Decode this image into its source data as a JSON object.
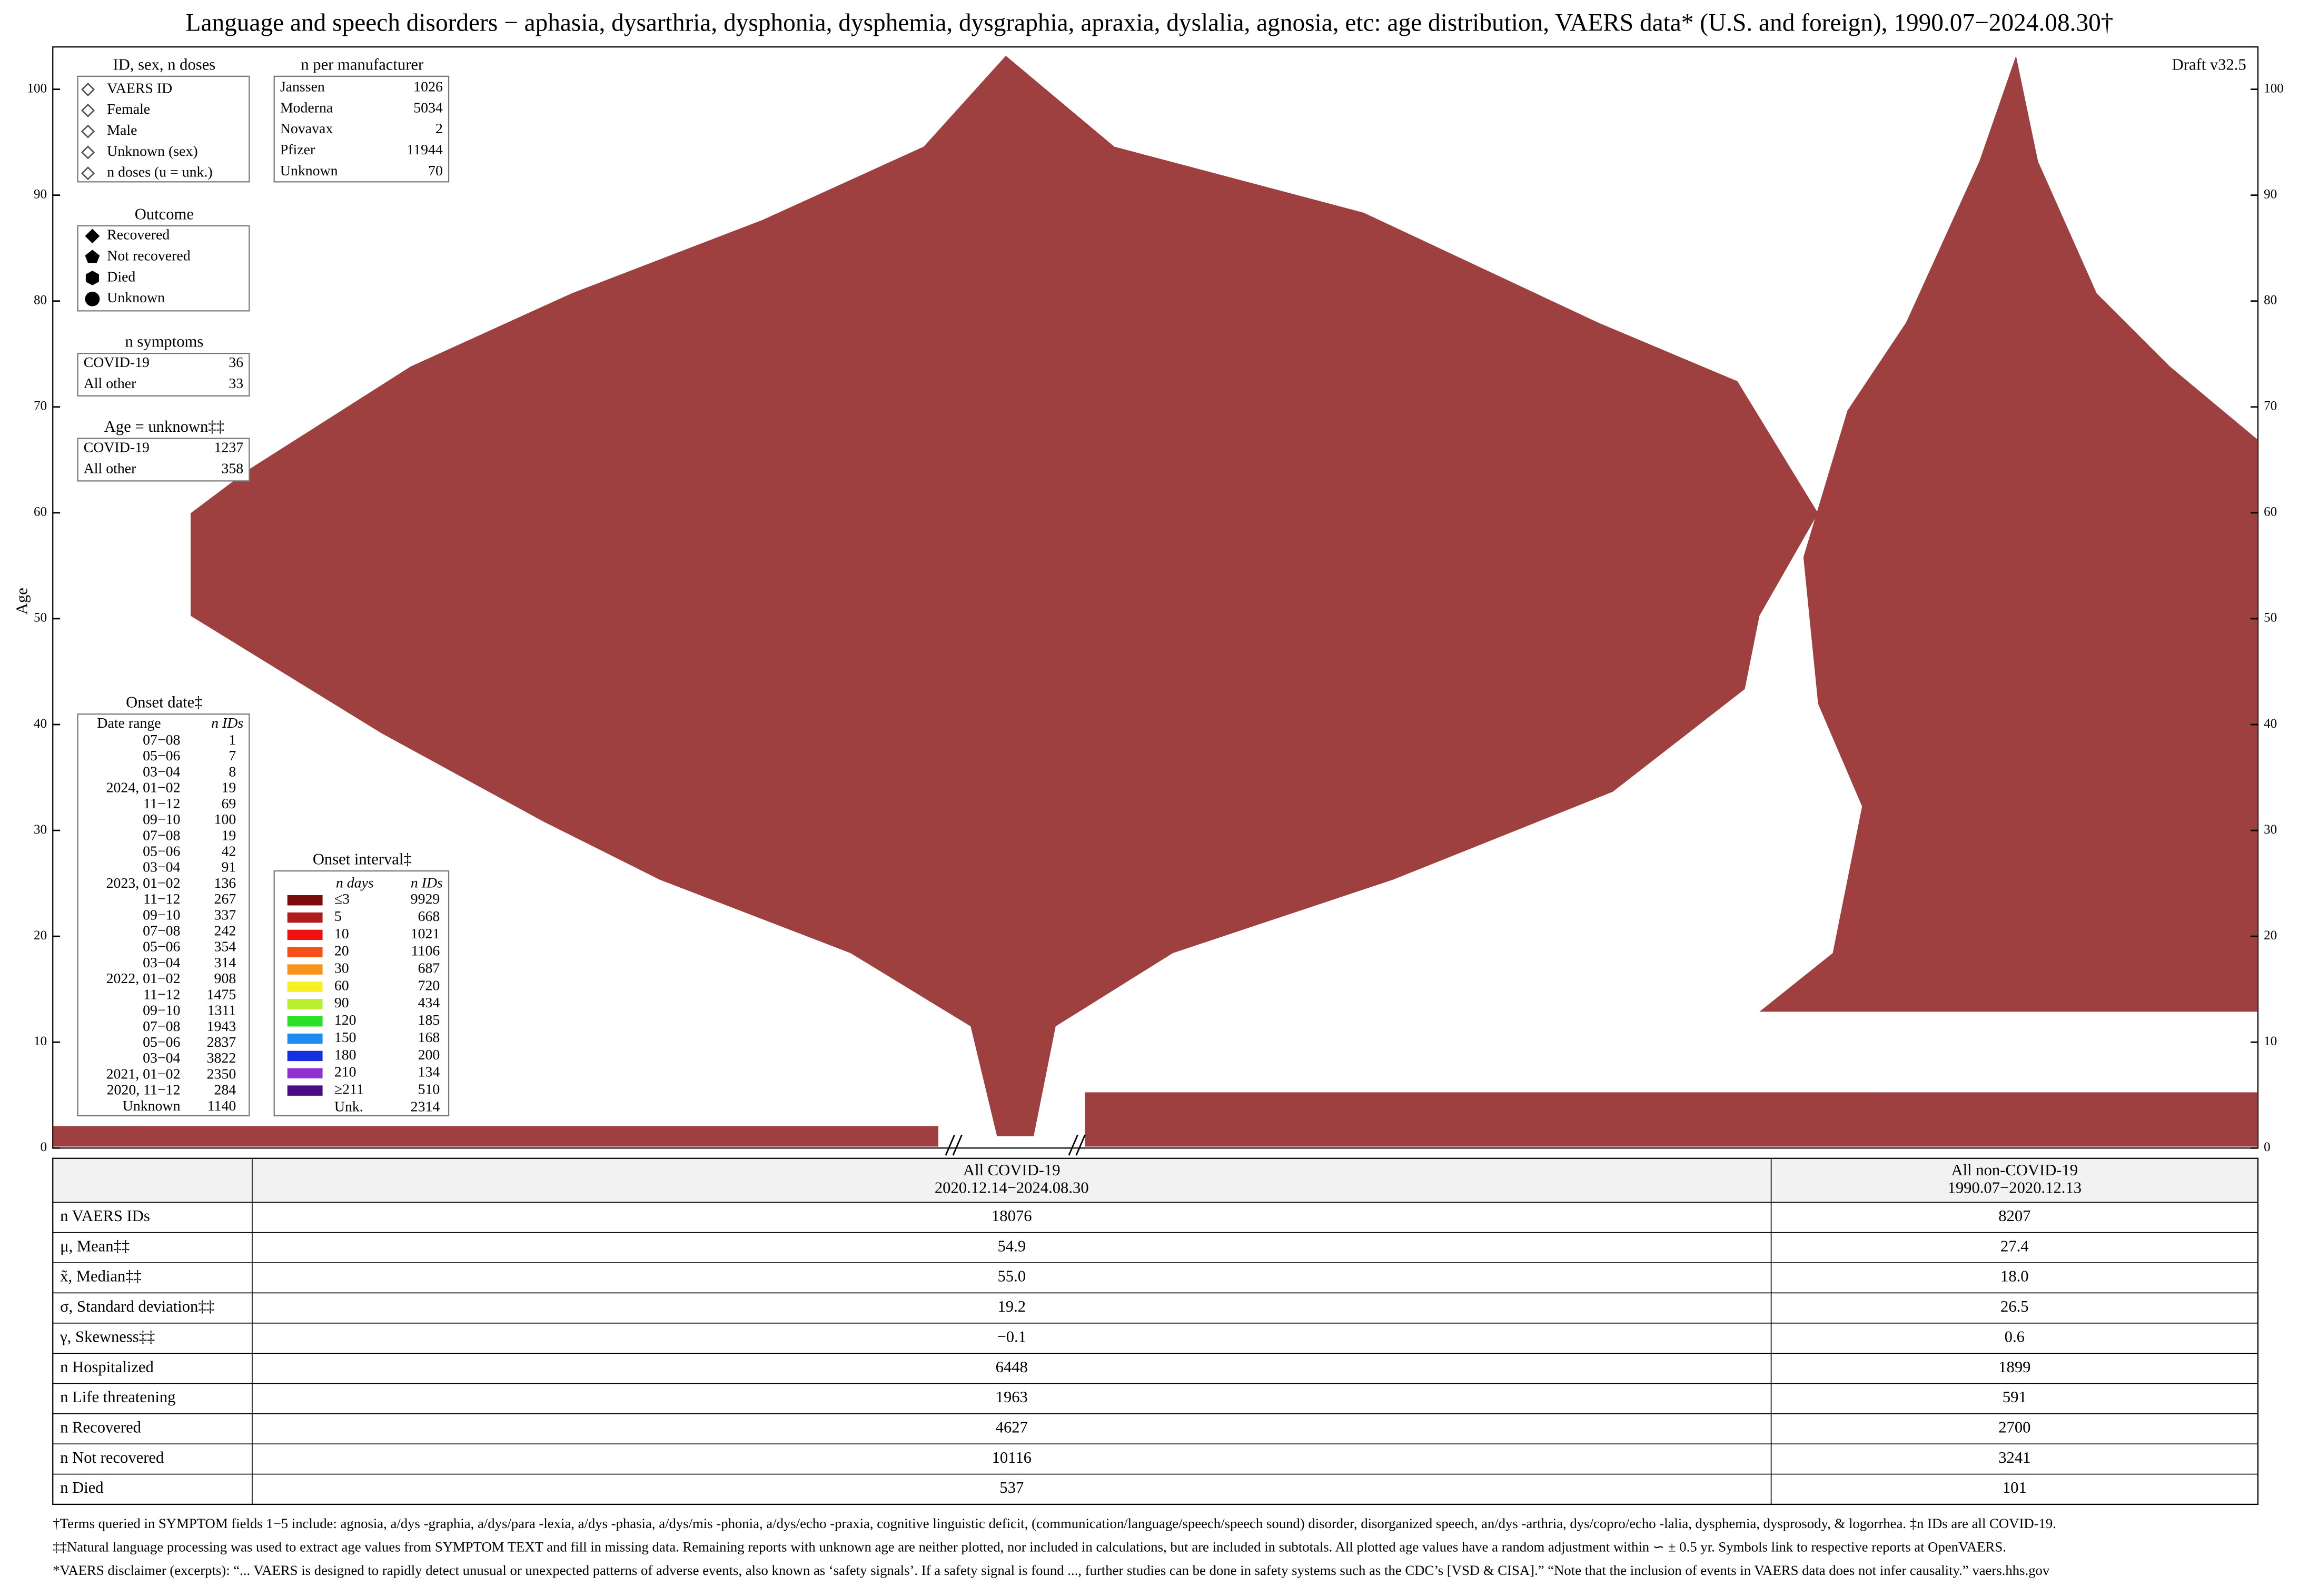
{
  "chart_data": {
    "type": "swarm",
    "title": "Language and speech disorders − aphasia, dysarthria, dysphonia, dysphemia, dysgraphia, apraxia, dyslalia, agnosia, etc: age distribution, VAERS data* (U.S. and foreign), 1990.07−2024.08.30†",
    "draft": "Draft v32.5",
    "ylabel": "Age",
    "ylim": [
      0,
      104
    ],
    "yticks": [
      0,
      10,
      20,
      30,
      40,
      50,
      60,
      70,
      80,
      90,
      100
    ],
    "legend_id": {
      "title": "ID, sex, n doses",
      "items": [
        "VAERS ID",
        "Female",
        "Male",
        "Unknown (sex)",
        "n doses (u = unk.)"
      ]
    },
    "legend_manufacturer": {
      "title": "n per manufacturer",
      "rows": [
        [
          "Janssen",
          1026
        ],
        [
          "Moderna",
          5034
        ],
        [
          "Novavax",
          2
        ],
        [
          "Pfizer",
          11944
        ],
        [
          "Unknown",
          70
        ]
      ]
    },
    "legend_outcome": {
      "title": "Outcome",
      "items": [
        "Recovered",
        "Not recovered",
        "Died",
        "Unknown"
      ]
    },
    "legend_symptoms": {
      "title": "n symptoms",
      "rows": [
        [
          "COVID-19",
          36
        ],
        [
          "All other",
          33
        ]
      ]
    },
    "legend_age_unknown": {
      "title": "Age = unknown‡‡",
      "rows": [
        [
          "COVID-19",
          1237
        ],
        [
          "All other",
          358
        ]
      ]
    },
    "legend_onset_date": {
      "title": "Onset date‡",
      "header": [
        "Date range",
        "n IDs"
      ],
      "rows": [
        [
          "07−08",
          1
        ],
        [
          "05−06",
          7
        ],
        [
          "03−04",
          8
        ],
        [
          "2024, 01−02",
          19
        ],
        [
          "11−12",
          69
        ],
        [
          "09−10",
          100
        ],
        [
          "07−08",
          19
        ],
        [
          "05−06",
          42
        ],
        [
          "03−04",
          91
        ],
        [
          "2023, 01−02",
          136
        ],
        [
          "11−12",
          267
        ],
        [
          "09−10",
          337
        ],
        [
          "07−08",
          242
        ],
        [
          "05−06",
          354
        ],
        [
          "03−04",
          314
        ],
        [
          "2022, 01−02",
          908
        ],
        [
          "11−12",
          1475
        ],
        [
          "09−10",
          1311
        ],
        [
          "07−08",
          1943
        ],
        [
          "05−06",
          2837
        ],
        [
          "03−04",
          3822
        ],
        [
          "2021, 01−02",
          2350
        ],
        [
          "2020, 11−12",
          284
        ],
        [
          "Unknown",
          1140
        ]
      ]
    },
    "legend_onset_interval": {
      "title": "Onset interval‡",
      "header": [
        "n days",
        "n IDs"
      ],
      "rows": [
        {
          "label": "≤3",
          "count": 9929,
          "color": "#7a0c0c"
        },
        {
          "label": "5",
          "count": 668,
          "color": "#b01c1c"
        },
        {
          "label": "10",
          "count": 1021,
          "color": "#f01010"
        },
        {
          "label": "20",
          "count": 1106,
          "color": "#f5501a"
        },
        {
          "label": "30",
          "count": 687,
          "color": "#f8921c"
        },
        {
          "label": "60",
          "count": 720,
          "color": "#f8f020"
        },
        {
          "label": "90",
          "count": 434,
          "color": "#b8f030"
        },
        {
          "label": "120",
          "count": 185,
          "color": "#28e028"
        },
        {
          "label": "150",
          "count": 168,
          "color": "#1c8cf0"
        },
        {
          "label": "180",
          "count": 200,
          "color": "#1430e0"
        },
        {
          "label": "210",
          "count": 134,
          "color": "#9030d0"
        },
        {
          "label": "≥211",
          "count": 510,
          "color": "#4a0c80"
        },
        {
          "label": "Unk.",
          "count": 2314,
          "color": null
        }
      ]
    },
    "table": {
      "columns": [
        {
          "title": "All COVID-19",
          "range": "2020.12.14−2024.08.30"
        },
        {
          "title": "All non-COVID-19",
          "range": "1990.07−2020.12.13"
        }
      ],
      "rows": [
        [
          "n VAERS IDs",
          "18076",
          "8207"
        ],
        [
          "μ, Mean‡‡",
          "54.9",
          "27.4"
        ],
        [
          "x̃, Median‡‡",
          "55.0",
          "18.0"
        ],
        [
          "σ, Standard deviation‡‡",
          "19.2",
          "26.5"
        ],
        [
          "γ, Skewness‡‡",
          "−0.1",
          "0.6"
        ],
        [
          "n Hospitalized",
          "6448",
          "1899"
        ],
        [
          "n Life threatening",
          "1963",
          "591"
        ],
        [
          "n Recovered",
          "4627",
          "2700"
        ],
        [
          "n Not recovered",
          "10116",
          "3241"
        ],
        [
          "n Died",
          "537",
          "101"
        ]
      ]
    },
    "footnotes": [
      "†Terms queried in SYMPTOM fields 1−5 include: agnosia, a/dys -graphia, a/dys/para -lexia, a/dys -phasia, a/dys/mis -phonia, a/dys/echo -praxia, cognitive linguistic deficit, (communication/language/speech/speech sound) disorder, disorganized speech, an/dys -arthria, dys/copro/echo -lalia, dysphemia, dysprosody, & logorrhea. ‡n IDs are all COVID-19.",
      "‡‡Natural language processing was used to extract age values from SYMPTOM TEXT and fill in missing data. Remaining reports with unknown age are neither plotted, nor included in calculations, but are included in subtotals. All plotted age values have a random adjustment within ∽ ± 0.5 yr.          Symbols link to respective reports at OpenVAERS.",
      "*VAERS disclaimer (excerpts): “... VAERS is designed to rapidly detect unusual or unexpected patterns of adverse events, also known as ‘safety signals’. If a safety signal is found ..., further studies can be done in safety systems such as the CDC’s [VSD & CISA].” “Note that the inclusion of events in VAERS data does not infer causality.”  vaers.hhs.gov"
    ]
  }
}
